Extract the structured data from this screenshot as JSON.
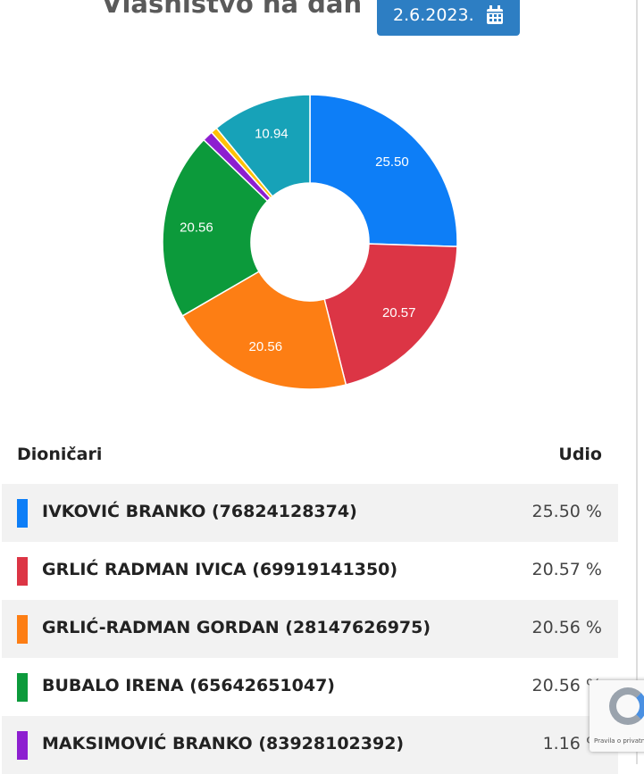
{
  "title": "Vlasništvo na dan",
  "date_button": "2.6.2023.",
  "chart_data": {
    "type": "pie",
    "donut": true,
    "values": [
      25.5,
      20.57,
      20.56,
      20.56,
      1.16,
      0.71,
      10.94
    ],
    "value_labels": [
      "25.50",
      "20.57",
      "20.56",
      "20.56",
      null,
      null,
      "10.94"
    ],
    "colors": [
      "#0d7ef7",
      "#dc3545",
      "#fd7e14",
      "#0c9a3b",
      "#8d1fd0",
      "#ffc107",
      "#17a2b8"
    ]
  },
  "table": {
    "header": [
      "Dioničari",
      "Udio"
    ],
    "rows": [
      [
        "IVKOVIĆ BRANKO (76824128374)",
        "25.50 %"
      ],
      [
        "GRLIĆ RADMAN IVICA (69919141350)",
        "20.57 %"
      ],
      [
        "GRLIĆ-RADMAN GORDAN (28147626975)",
        "20.56 %"
      ],
      [
        "BUBALO IRENA (65642651047)",
        "20.56 %"
      ],
      [
        "MAKSIMOVIĆ BRANKO (83928102392)",
        "1.16 %"
      ]
    ]
  },
  "recaptcha": "Pravila o privatnosti"
}
